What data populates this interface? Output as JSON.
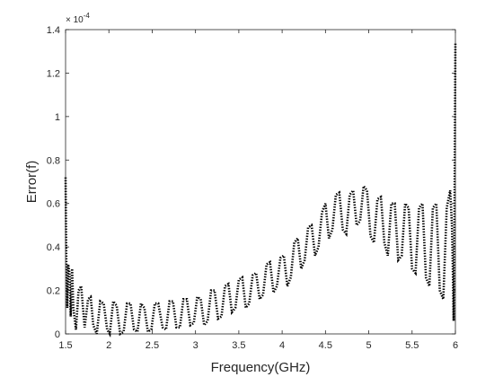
{
  "chart_data": {
    "type": "line",
    "title": "",
    "xlabel": "Frequency(GHz)",
    "ylabel": "Error(f)",
    "y_exponent_label": "× 10",
    "y_exponent_power": "-4",
    "xlim": [
      1.5,
      6
    ],
    "ylim": [
      0,
      1.4
    ],
    "grid": false,
    "legend": "none",
    "line_style": "dotted",
    "line_color": "#000000",
    "x_ticks": [
      1.5,
      2,
      2.5,
      3,
      3.5,
      4,
      4.5,
      5,
      5.5,
      6
    ],
    "x_tick_labels": [
      "1.5",
      "2",
      "2.5",
      "3",
      "3.5",
      "4",
      "4.5",
      "5",
      "5.5",
      "6"
    ],
    "y_ticks": [
      0,
      0.2,
      0.4,
      0.6,
      0.8,
      1,
      1.2,
      1.4
    ],
    "y_tick_labels": [
      "0",
      "0.2",
      "0.4",
      "0.6",
      "0.8",
      "1",
      "1.2",
      "1.4"
    ],
    "series": [
      {
        "values_note_units": "x in GHz, y in units of 1e-4",
        "x": [
          1.5,
          1.505,
          1.51,
          1.52,
          1.53,
          1.545,
          1.56,
          1.575,
          1.59,
          1.62,
          1.65,
          1.68,
          1.72,
          1.76,
          1.79,
          1.82,
          1.86,
          1.9,
          1.94,
          1.98,
          2.01,
          2.05,
          2.09,
          2.13,
          2.17,
          2.21,
          2.25,
          2.29,
          2.33,
          2.37,
          2.41,
          2.45,
          2.49,
          2.53,
          2.57,
          2.62,
          2.66,
          2.7,
          2.74,
          2.78,
          2.82,
          2.86,
          2.9,
          2.94,
          2.98,
          3.02,
          3.06,
          3.1,
          3.14,
          3.18,
          3.22,
          3.26,
          3.3,
          3.34,
          3.38,
          3.42,
          3.46,
          3.5,
          3.54,
          3.58,
          3.62,
          3.66,
          3.7,
          3.74,
          3.78,
          3.82,
          3.86,
          3.9,
          3.94,
          3.98,
          4.02,
          4.06,
          4.1,
          4.14,
          4.18,
          4.22,
          4.26,
          4.3,
          4.34,
          4.38,
          4.42,
          4.46,
          4.5,
          4.54,
          4.58,
          4.62,
          4.66,
          4.7,
          4.74,
          4.78,
          4.82,
          4.86,
          4.9,
          4.94,
          4.98,
          5.02,
          5.06,
          5.1,
          5.14,
          5.18,
          5.22,
          5.26,
          5.3,
          5.34,
          5.38,
          5.42,
          5.46,
          5.5,
          5.54,
          5.58,
          5.62,
          5.66,
          5.7,
          5.74,
          5.78,
          5.82,
          5.86,
          5.9,
          5.92,
          5.94,
          5.96,
          5.97,
          5.98,
          5.99,
          6.0
        ],
        "y": [
          0.72,
          0.5,
          0.3,
          0.12,
          0.32,
          0.28,
          0.08,
          0.3,
          0.12,
          0.02,
          0.2,
          0.22,
          0.03,
          0.16,
          0.17,
          0.04,
          0.0,
          0.15,
          0.14,
          0.02,
          0.0,
          0.15,
          0.13,
          0.0,
          0.01,
          0.14,
          0.14,
          0.02,
          0.01,
          0.14,
          0.12,
          0.01,
          0.02,
          0.14,
          0.14,
          0.03,
          0.02,
          0.15,
          0.15,
          0.03,
          0.03,
          0.16,
          0.16,
          0.04,
          0.05,
          0.17,
          0.16,
          0.04,
          0.06,
          0.2,
          0.2,
          0.07,
          0.08,
          0.22,
          0.23,
          0.1,
          0.12,
          0.25,
          0.26,
          0.12,
          0.14,
          0.27,
          0.28,
          0.16,
          0.18,
          0.32,
          0.33,
          0.19,
          0.22,
          0.35,
          0.36,
          0.22,
          0.26,
          0.42,
          0.44,
          0.3,
          0.34,
          0.49,
          0.5,
          0.36,
          0.4,
          0.56,
          0.6,
          0.44,
          0.48,
          0.64,
          0.65,
          0.48,
          0.46,
          0.64,
          0.66,
          0.5,
          0.52,
          0.68,
          0.66,
          0.45,
          0.42,
          0.62,
          0.63,
          0.42,
          0.36,
          0.6,
          0.6,
          0.34,
          0.36,
          0.6,
          0.58,
          0.3,
          0.28,
          0.58,
          0.6,
          0.26,
          0.22,
          0.58,
          0.6,
          0.2,
          0.16,
          0.58,
          0.62,
          0.66,
          0.5,
          0.3,
          0.06,
          0.6,
          1.34
        ]
      }
    ]
  }
}
